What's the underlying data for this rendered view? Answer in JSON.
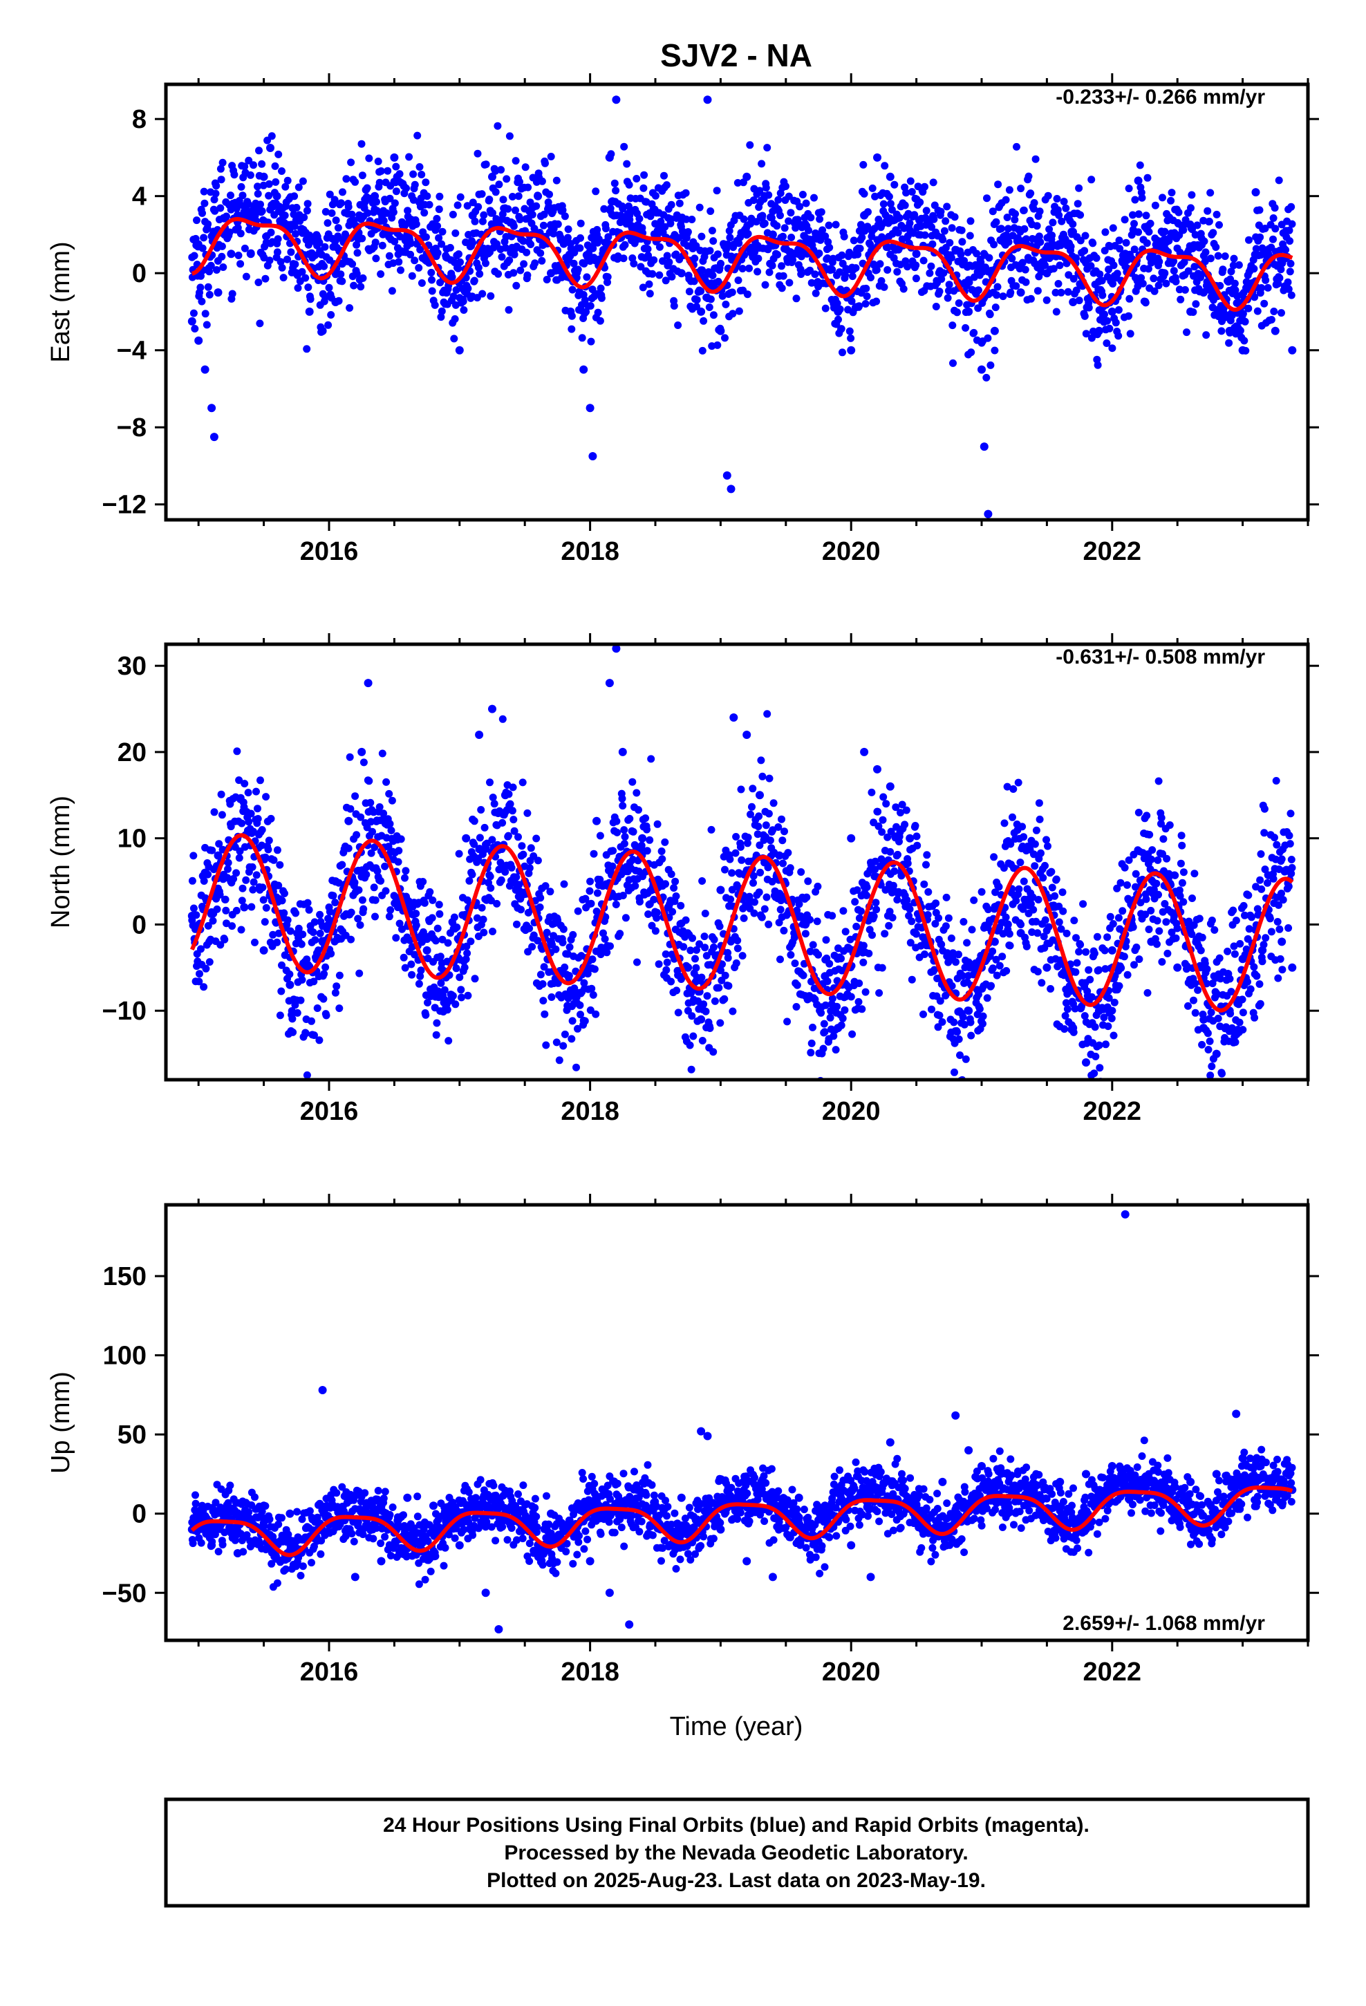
{
  "title": "SJV2 - NA",
  "colors": {
    "final_orbits": "#0000ff",
    "model": "#ff0000",
    "frame": "#000000"
  },
  "xlabel": "Time (year)",
  "footer": {
    "line1": "24 Hour Positions Using Final Orbits (blue) and Rapid Orbits (magenta).",
    "line2": "Processed by the Nevada Geodetic Laboratory.",
    "line3": "Plotted on 2025-Aug-23. Last data on 2023-May-19."
  },
  "chart_data": [
    {
      "type": "scatter",
      "panel": "east",
      "ylabel": "East (mm)",
      "rate": "-0.233+/- 0.266 mm/yr",
      "xlim": [
        2014.75,
        2023.5
      ],
      "ylim": [
        -12.8,
        9.8
      ],
      "xticks": [
        2016,
        2018,
        2020,
        2022
      ],
      "yticks": [
        -12,
        -8,
        -4,
        0,
        4,
        8
      ],
      "points_note": "daily positions 2014.95-2023.38, scatter sampled",
      "series": [
        {
          "name": "Final Orbits (blue)",
          "kind": "points",
          "x": [
            2014.95,
            2015.0,
            2015.05,
            2015.1,
            2015.12,
            2015.15,
            2015.2,
            2015.25,
            2015.3,
            2015.4,
            2015.5,
            2015.55,
            2015.6,
            2015.65,
            2015.75,
            2015.85,
            2015.95,
            2016.05,
            2016.1,
            2016.2,
            2016.35,
            2016.5,
            2016.6,
            2016.75,
            2016.9,
            2017.0,
            2017.1,
            2017.25,
            2017.4,
            2017.6,
            2017.7,
            2017.85,
            2017.95,
            2018.0,
            2018.02,
            2018.05,
            2018.15,
            2018.2,
            2018.3,
            2018.5,
            2018.7,
            2018.85,
            2018.9,
            2019.0,
            2019.05,
            2019.08,
            2019.2,
            2019.4,
            2019.6,
            2019.75,
            2019.9,
            2020.0,
            2020.1,
            2020.2,
            2020.3,
            2020.5,
            2020.7,
            2020.9,
            2021.0,
            2021.02,
            2021.05,
            2021.1,
            2021.3,
            2021.5,
            2021.7,
            2021.9,
            2022.0,
            2022.1,
            2022.2,
            2022.4,
            2022.6,
            2022.7,
            2022.9,
            2023.0,
            2023.1,
            2023.25,
            2023.38
          ],
          "y": [
            -2.5,
            -3.5,
            -5.0,
            -7.0,
            -8.5,
            -1.0,
            2.0,
            1.0,
            3.0,
            1.0,
            5.0,
            6.5,
            4.0,
            3.0,
            0.0,
            -2.0,
            -3.0,
            -1.5,
            0.5,
            2.0,
            4.0,
            6.0,
            2.0,
            1.0,
            -1.0,
            -4.0,
            3.0,
            5.0,
            2.0,
            4.0,
            0.0,
            -2.0,
            -5.0,
            -7.0,
            -9.5,
            2.0,
            6.0,
            9.0,
            3.0,
            2.0,
            0.0,
            -2.0,
            9.0,
            -3.0,
            -10.5,
            -11.2,
            5.0,
            2.0,
            1.0,
            2.0,
            -2.0,
            -4.0,
            3.0,
            6.0,
            5.0,
            1.0,
            0.0,
            -2.0,
            -5.0,
            -9.0,
            -12.5,
            -3.0,
            -1.0,
            0.0,
            -1.5,
            -3.0,
            -2.0,
            1.0,
            4.8,
            0.0,
            -2.0,
            -1.0,
            -3.0,
            -4.0,
            4.2,
            -3.0,
            -4.0
          ]
        },
        {
          "name": "model",
          "kind": "line",
          "model": {
            "x0": 2014.95,
            "offset": 1.8,
            "rate": -0.233,
            "annual_cos": -1.2,
            "annual_sin": 0.6,
            "semi_cos": -0.4,
            "semi_sin": 0.3
          }
        }
      ]
    },
    {
      "type": "scatter",
      "panel": "north",
      "ylabel": "North (mm)",
      "rate": "-0.631+/- 0.508 mm/yr",
      "xlim": [
        2014.75,
        2023.5
      ],
      "ylim": [
        -18,
        32.5
      ],
      "xticks": [
        2016,
        2018,
        2020,
        2022
      ],
      "yticks": [
        -10,
        0,
        10,
        20,
        30
      ],
      "series": [
        {
          "name": "Final Orbits (blue)",
          "kind": "points",
          "x": [
            2014.95,
            2015.05,
            2015.15,
            2015.25,
            2015.35,
            2015.5,
            2015.7,
            2015.8,
            2015.95,
            2016.05,
            2016.15,
            2016.25,
            2016.3,
            2016.45,
            2016.6,
            2016.75,
            2016.85,
            2016.95,
            2017.05,
            2017.15,
            2017.25,
            2017.35,
            2017.5,
            2017.7,
            2017.85,
            2017.95,
            2018.05,
            2018.15,
            2018.2,
            2018.25,
            2018.4,
            2018.6,
            2018.75,
            2018.85,
            2019.0,
            2019.1,
            2019.2,
            2019.3,
            2019.45,
            2019.65,
            2019.8,
            2019.9,
            2020.0,
            2020.1,
            2020.2,
            2020.3,
            2020.45,
            2020.6,
            2020.8,
            2020.9,
            2021.0,
            2021.1,
            2021.2,
            2021.3,
            2021.5,
            2021.7,
            2021.8,
            2021.9,
            2022.0,
            2022.15,
            2022.3,
            2022.5,
            2022.7,
            2022.8,
            2022.9,
            2023.0,
            2023.15,
            2023.3,
            2023.38
          ],
          "y": [
            1.0,
            6.0,
            8.0,
            5.0,
            2.0,
            -3.0,
            -7.0,
            -5.0,
            -2.0,
            5.0,
            12.0,
            20.0,
            28.0,
            8.0,
            2.0,
            -3.0,
            -6.0,
            -4.0,
            10.0,
            22.0,
            25.0,
            15.0,
            5.0,
            -2.0,
            -8.0,
            -5.0,
            12.0,
            28.0,
            32.0,
            20.0,
            10.0,
            2.0,
            -5.0,
            -11.0,
            4.0,
            24.0,
            22.0,
            15.0,
            8.0,
            0.0,
            -6.0,
            -12.0,
            10.0,
            20.0,
            18.0,
            16.0,
            10.0,
            -2.0,
            -8.0,
            -10.0,
            -5.0,
            -2.0,
            0.0,
            -1.0,
            -5.0,
            -12.0,
            -16.0,
            -10.0,
            -3.0,
            0.0,
            -2.0,
            -5.0,
            -12.0,
            -15.0,
            -10.0,
            -4.0,
            -3.0,
            -2.0,
            -5.0
          ]
        },
        {
          "name": "model",
          "kind": "line",
          "model": {
            "x0": 2014.95,
            "offset": 2.8,
            "rate": -0.631,
            "annual_cos": -3.8,
            "annual_sin": 6.8,
            "semi_cos": 0.0,
            "semi_sin": 0.0
          }
        }
      ]
    },
    {
      "type": "scatter",
      "panel": "up",
      "ylabel": "Up (mm)",
      "rate": "2.659+/- 1.068 mm/yr",
      "xlim": [
        2014.75,
        2023.5
      ],
      "ylim": [
        -80,
        195
      ],
      "xticks": [
        2016,
        2018,
        2020,
        2022
      ],
      "yticks": [
        -50,
        0,
        50,
        100,
        150
      ],
      "series": [
        {
          "name": "Final Orbits (blue)",
          "kind": "points",
          "x": [
            2014.95,
            2015.1,
            2015.3,
            2015.5,
            2015.7,
            2015.95,
            2016.2,
            2016.4,
            2016.6,
            2016.8,
            2017.0,
            2017.2,
            2017.3,
            2017.5,
            2017.7,
            2017.9,
            2018.0,
            2018.15,
            2018.3,
            2018.5,
            2018.7,
            2018.85,
            2018.9,
            2019.0,
            2019.2,
            2019.4,
            2019.6,
            2019.8,
            2020.0,
            2020.15,
            2020.3,
            2020.5,
            2020.7,
            2020.8,
            2020.9,
            2021.0,
            2021.2,
            2021.4,
            2021.6,
            2021.8,
            2022.0,
            2022.1,
            2022.2,
            2022.4,
            2022.6,
            2022.8,
            2022.95,
            2023.0,
            2023.2,
            2023.38
          ],
          "y": [
            -10.0,
            -20.0,
            -25.0,
            5.0,
            0.0,
            78.0,
            -40.0,
            -30.0,
            10.0,
            5.0,
            -20.0,
            -50.0,
            -73.0,
            -10.0,
            0.0,
            5.0,
            -30.0,
            -50.0,
            -70.0,
            5.0,
            10.0,
            52.0,
            49.0,
            -10.0,
            -30.0,
            -40.0,
            10.0,
            5.0,
            -20.0,
            -40.0,
            45.0,
            5.0,
            20.0,
            62.0,
            40.0,
            30.0,
            10.0,
            15.0,
            20.0,
            25.0,
            30.0,
            189.0,
            20.0,
            15.0,
            20.0,
            25.0,
            63.0,
            35.0,
            20.0,
            15.0
          ]
        },
        {
          "name": "model",
          "kind": "line",
          "model": {
            "x0": 2014.95,
            "offset": -14.0,
            "rate": 2.659,
            "annual_cos": 4.0,
            "annual_sin": 10.5,
            "semi_cos": 2.5,
            "semi_sin": -1.5
          }
        }
      ]
    }
  ]
}
